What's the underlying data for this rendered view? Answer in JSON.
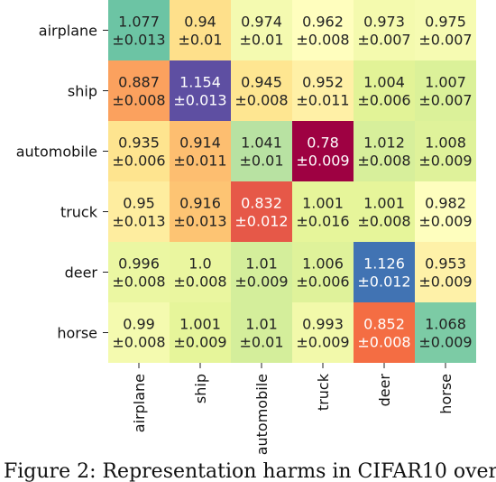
{
  "chart_data": {
    "type": "heatmap",
    "rows": [
      "airplane",
      "ship",
      "automobile",
      "truck",
      "deer",
      "horse"
    ],
    "columns": [
      "airplane",
      "ship",
      "automobile",
      "truck",
      "deer",
      "horse"
    ],
    "values": [
      [
        "1.077",
        "0.94",
        "0.974",
        "0.962",
        "0.973",
        "0.975"
      ],
      [
        "0.887",
        "1.154",
        "0.945",
        "0.952",
        "1.004",
        "1.007"
      ],
      [
        "0.935",
        "0.914",
        "1.041",
        "0.78",
        "1.012",
        "1.008"
      ],
      [
        "0.95",
        "0.916",
        "0.832",
        "1.001",
        "1.001",
        "0.982"
      ],
      [
        "0.996",
        "1.0",
        "1.01",
        "1.006",
        "1.126",
        "0.953"
      ],
      [
        "0.99",
        "1.001",
        "1.01",
        "0.993",
        "0.852",
        "1.068"
      ]
    ],
    "errors": [
      [
        "±0.013",
        "±0.01",
        "±0.01",
        "±0.008",
        "±0.007",
        "±0.007"
      ],
      [
        "±0.008",
        "±0.013",
        "±0.008",
        "±0.011",
        "±0.006",
        "±0.007"
      ],
      [
        "±0.006",
        "±0.011",
        "±0.01",
        "±0.009",
        "±0.008",
        "±0.009"
      ],
      [
        "±0.013",
        "±0.013",
        "±0.012",
        "±0.016",
        "±0.008",
        "±0.009"
      ],
      [
        "±0.008",
        "±0.008",
        "±0.009",
        "±0.006",
        "±0.012",
        "±0.009"
      ],
      [
        "±0.008",
        "±0.009",
        "±0.01",
        "±0.009",
        "±0.008",
        "±0.009"
      ]
    ],
    "colors": [
      [
        "#6cc4a4",
        "#fee08b",
        "#f4fab0",
        "#fffebe",
        "#f4faae",
        "#f6fbb2"
      ],
      [
        "#fba15e",
        "#5e4fa2",
        "#fee691",
        "#fff0a6",
        "#e2f397",
        "#dbf199"
      ],
      [
        "#fee48f",
        "#fdbe70",
        "#b8e2a2",
        "#9e0142",
        "#d7ef9b",
        "#dff29a"
      ],
      [
        "#feed9f",
        "#fdc473",
        "#e65848",
        "#e6f59a",
        "#e6f59a",
        "#fefebe"
      ],
      [
        "#ebf7a2",
        "#eaf69f",
        "#d4ee9b",
        "#dff29a",
        "#4173b3",
        "#fef1a8"
      ],
      [
        "#f4faaf",
        "#e6f59a",
        "#d4ee9b",
        "#f2f9aa",
        "#f46d43",
        "#7ccba5"
      ]
    ],
    "light_text_cells": [
      [
        1,
        1
      ],
      [
        2,
        3
      ],
      [
        3,
        2
      ],
      [
        4,
        4
      ],
      [
        5,
        4
      ]
    ]
  },
  "caption": "Figure 2: Representation harms in CIFAR10 over"
}
